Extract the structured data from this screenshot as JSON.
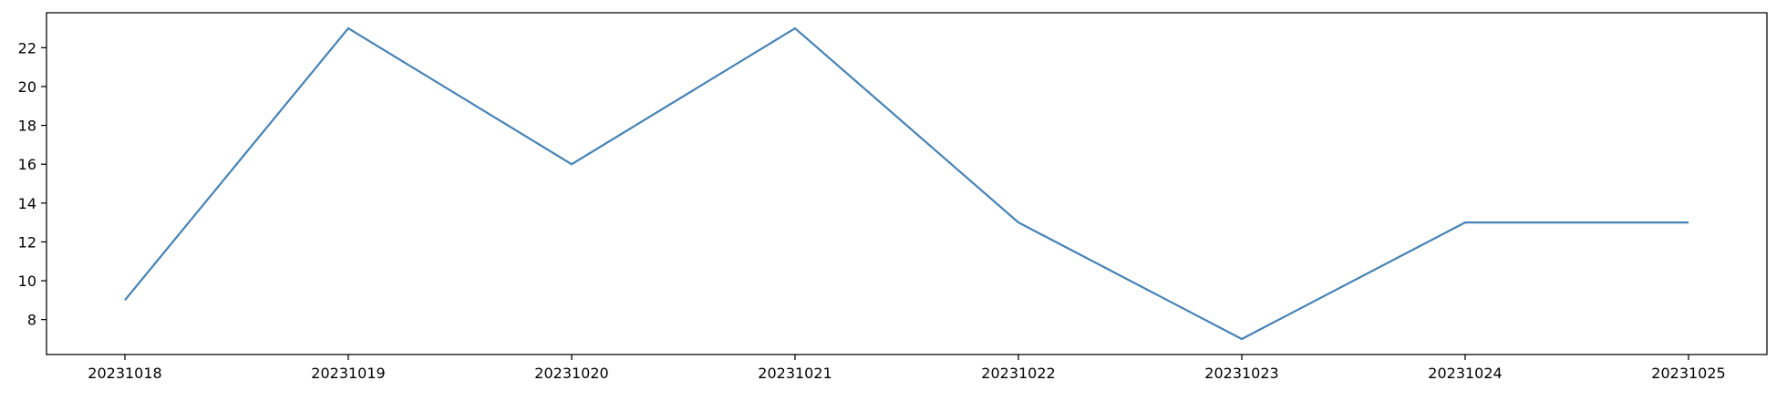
{
  "chart_data": {
    "type": "line",
    "title": "",
    "xlabel": "",
    "ylabel": "",
    "x": [
      "20231018",
      "20231019",
      "20231020",
      "20231021",
      "20231022",
      "20231023",
      "20231024",
      "20231025"
    ],
    "series": [
      {
        "values": [
          9,
          23,
          16,
          23,
          13,
          7,
          13,
          13
        ],
        "color": "#4682b4"
      }
    ],
    "yticks": [
      8,
      10,
      12,
      14,
      16,
      18,
      20,
      22
    ],
    "ylim": [
      6.2,
      23.8
    ],
    "grid": false,
    "legend": "none"
  }
}
